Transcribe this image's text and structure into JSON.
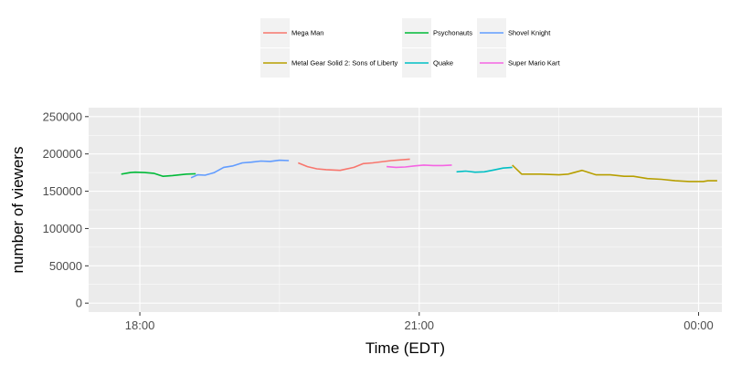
{
  "chart_data": {
    "type": "line",
    "xlabel": "Time (EDT)",
    "ylabel": "number of viewers",
    "x_ticks": [
      {
        "label": "18:00",
        "value": 18
      },
      {
        "label": "21:00",
        "value": 21
      },
      {
        "label": "00:00",
        "value": 24
      }
    ],
    "y_ticks": [
      {
        "label": "0",
        "value": 0
      },
      {
        "label": "50000",
        "value": 50000
      },
      {
        "label": "100000",
        "value": 100000
      },
      {
        "label": "150000",
        "value": 150000
      },
      {
        "label": "200000",
        "value": 200000
      },
      {
        "label": "250000",
        "value": 250000
      }
    ],
    "xlim": [
      17.45,
      24.25
    ],
    "ylim": [
      -12000,
      262000
    ],
    "grid": true,
    "legend_position": "top",
    "series": [
      {
        "name": "Mega Man",
        "color": "#F8766D",
        "x": [
          19.7,
          19.8,
          19.9,
          20.0,
          20.15,
          20.3,
          20.4,
          20.5,
          20.7,
          20.9
        ],
        "y": [
          188000,
          183000,
          180000,
          179000,
          178000,
          182000,
          187000,
          188000,
          191000,
          193000
        ]
      },
      {
        "name": "Metal Gear Solid 2: Sons of Liberty",
        "color": "#B79F00",
        "x": [
          22.0,
          22.1,
          22.3,
          22.5,
          22.6,
          22.75,
          22.9,
          23.05,
          23.2,
          23.3,
          23.45,
          23.6,
          23.75,
          23.9,
          24.05,
          24.1,
          24.2
        ],
        "y": [
          185000,
          173000,
          173000,
          172000,
          173000,
          178000,
          172000,
          172000,
          170000,
          170000,
          167000,
          166000,
          164000,
          163000,
          163000,
          164000,
          164000
        ]
      },
      {
        "name": "Psychonauts",
        "color": "#00BA38",
        "x": [
          17.8,
          17.9,
          17.95,
          18.05,
          18.15,
          18.25,
          18.35,
          18.5,
          18.6
        ],
        "y": [
          173000,
          175000,
          175500,
          175000,
          174000,
          170000,
          171000,
          173000,
          173500
        ]
      },
      {
        "name": "Quake",
        "color": "#00BFC4",
        "x": [
          21.4,
          21.5,
          21.6,
          21.7,
          21.8,
          21.9,
          22.0
        ],
        "y": [
          176000,
          177000,
          175500,
          176000,
          178500,
          181000,
          182000
        ]
      },
      {
        "name": "Shovel Knight",
        "color": "#619CFF",
        "x": [
          18.55,
          18.62,
          18.7,
          18.8,
          18.9,
          19.0,
          19.1,
          19.2,
          19.3,
          19.4,
          19.5,
          19.6
        ],
        "y": [
          168000,
          172000,
          171500,
          175000,
          182000,
          184000,
          188000,
          189000,
          190500,
          190000,
          191500,
          191000
        ]
      },
      {
        "name": "Super Mario Kart",
        "color": "#F564E3",
        "x": [
          20.65,
          20.75,
          20.85,
          20.95,
          21.05,
          21.15,
          21.25,
          21.35
        ],
        "y": [
          183000,
          182000,
          182500,
          184000,
          185000,
          184500,
          184500,
          185000
        ]
      }
    ]
  }
}
